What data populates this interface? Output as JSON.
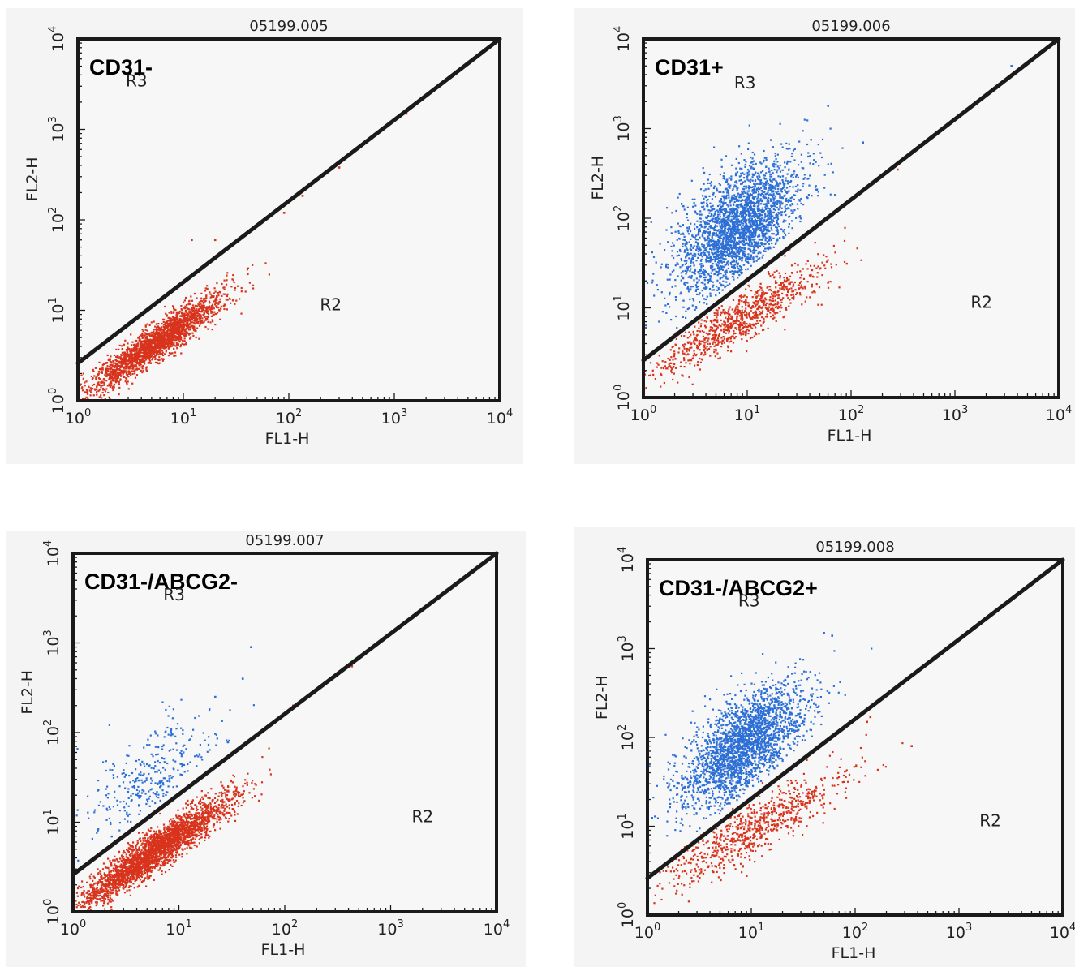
{
  "figure": {
    "background": "#f4f4f4",
    "red_hex": "#d8331c",
    "blue_hex": "#2c6fd6"
  },
  "chart_data": [
    {
      "type": "scatter",
      "sample_id": "05199.005",
      "title": "CD31-",
      "xlabel": "FL1-H",
      "ylabel": "FL2-H",
      "x_scale": "log",
      "y_scale": "log",
      "xlim": [
        1,
        10000
      ],
      "ylim": [
        1,
        10000
      ],
      "x_ticks": [
        {
          "base": "10",
          "exp": "0"
        },
        {
          "base": "10",
          "exp": "1"
        },
        {
          "base": "10",
          "exp": "2"
        },
        {
          "base": "10",
          "exp": "3"
        },
        {
          "base": "10",
          "exp": "4"
        }
      ],
      "y_ticks": [
        {
          "base": "10",
          "exp": "0"
        },
        {
          "base": "10",
          "exp": "1"
        },
        {
          "base": "10",
          "exp": "2"
        },
        {
          "base": "10",
          "exp": "3"
        },
        {
          "base": "10",
          "exp": "4"
        }
      ],
      "gate_line": {
        "x": [
          1,
          10000
        ],
        "y": [
          2.6,
          10000
        ]
      },
      "regions": [
        {
          "label": "R3",
          "x": 3.6,
          "y": 3000
        },
        {
          "label": "R2",
          "x": 250,
          "y": 10
        }
      ],
      "series": [
        {
          "color": "#d8331c",
          "count": 2200,
          "x_log_mean": 0.75,
          "y_log_mean": 0.65,
          "x_log_sd": 0.32,
          "y_log_sd": 0.27,
          "correlation": 0.93,
          "outliers": [
            [
              12,
              60
            ],
            [
              20,
              60
            ],
            [
              300,
              380
            ],
            [
              1300,
              1500
            ],
            [
              135,
              185
            ],
            [
              90,
              120
            ]
          ]
        }
      ]
    },
    {
      "type": "scatter",
      "sample_id": "05199.006",
      "title": "CD31+",
      "xlabel": "FL1-H",
      "ylabel": "FL2-H",
      "x_scale": "log",
      "y_scale": "log",
      "xlim": [
        1,
        10000
      ],
      "ylim": [
        1,
        10000
      ],
      "x_ticks": [
        {
          "base": "10",
          "exp": "0"
        },
        {
          "base": "10",
          "exp": "1"
        },
        {
          "base": "10",
          "exp": "2"
        },
        {
          "base": "10",
          "exp": "3"
        },
        {
          "base": "10",
          "exp": "4"
        }
      ],
      "y_ticks": [
        {
          "base": "10",
          "exp": "0"
        },
        {
          "base": "10",
          "exp": "1"
        },
        {
          "base": "10",
          "exp": "2"
        },
        {
          "base": "10",
          "exp": "3"
        },
        {
          "base": "10",
          "exp": "4"
        }
      ],
      "gate_line": {
        "x": [
          1,
          10000
        ],
        "y": [
          2.6,
          10000
        ]
      },
      "regions": [
        {
          "label": "R3",
          "x": 9.5,
          "y": 2800
        },
        {
          "label": "R2",
          "x": 1800,
          "y": 10
        }
      ],
      "series": [
        {
          "color": "#2c6fd6",
          "count": 2600,
          "x_log_mean": 0.92,
          "y_log_mean": 1.9,
          "x_log_sd": 0.3,
          "y_log_sd": 0.37,
          "correlation": 0.55,
          "outliers": [
            [
              60,
              1800
            ],
            [
              3500,
              5000
            ],
            [
              130,
              700
            ]
          ]
        },
        {
          "color": "#d8331c",
          "count": 900,
          "x_log_mean": 0.95,
          "y_log_mean": 0.9,
          "x_log_sd": 0.42,
          "y_log_sd": 0.32,
          "correlation": 0.9,
          "outliers": [
            [
              280,
              350
            ]
          ]
        }
      ]
    },
    {
      "type": "scatter",
      "sample_id": "05199.007",
      "title": "CD31-/ABCG2-",
      "xlabel": "FL1-H",
      "ylabel": "FL2-H",
      "x_scale": "log",
      "y_scale": "log",
      "xlim": [
        1,
        10000
      ],
      "ylim": [
        1,
        10000
      ],
      "x_ticks": [
        {
          "base": "10",
          "exp": "0"
        },
        {
          "base": "10",
          "exp": "1"
        },
        {
          "base": "10",
          "exp": "2"
        },
        {
          "base": "10",
          "exp": "3"
        },
        {
          "base": "10",
          "exp": "4"
        }
      ],
      "y_ticks": [
        {
          "base": "10",
          "exp": "0"
        },
        {
          "base": "10",
          "exp": "1"
        },
        {
          "base": "10",
          "exp": "2"
        },
        {
          "base": "10",
          "exp": "3"
        },
        {
          "base": "10",
          "exp": "4"
        }
      ],
      "gate_line": {
        "x": [
          1,
          10000
        ],
        "y": [
          2.6,
          10000
        ]
      },
      "regions": [
        {
          "label": "R3",
          "x": 9,
          "y": 3000
        },
        {
          "label": "R2",
          "x": 2000,
          "y": 10
        }
      ],
      "series": [
        {
          "color": "#d8331c",
          "count": 2700,
          "x_log_mean": 0.78,
          "y_log_mean": 0.68,
          "x_log_sd": 0.35,
          "y_log_sd": 0.3,
          "correlation": 0.93,
          "outliers": [
            [
              200,
              300
            ],
            [
              430,
              550
            ],
            [
              120,
              200
            ]
          ]
        },
        {
          "color": "#2c6fd6",
          "count": 320,
          "x_log_mean": 0.8,
          "y_log_mean": 1.5,
          "x_log_sd": 0.33,
          "y_log_sd": 0.33,
          "correlation": 0.5,
          "outliers": [
            [
              48,
              900
            ],
            [
              40,
              400
            ],
            [
              22,
              250
            ]
          ]
        }
      ]
    },
    {
      "type": "scatter",
      "sample_id": "05199.008",
      "title": "CD31-/ABCG2+",
      "xlabel": "FL1-H",
      "ylabel": "FL2-H",
      "x_scale": "log",
      "y_scale": "log",
      "xlim": [
        1,
        10000
      ],
      "ylim": [
        1,
        10000
      ],
      "x_ticks": [
        {
          "base": "10",
          "exp": "0"
        },
        {
          "base": "10",
          "exp": "1"
        },
        {
          "base": "10",
          "exp": "2"
        },
        {
          "base": "10",
          "exp": "3"
        },
        {
          "base": "10",
          "exp": "4"
        }
      ],
      "y_ticks": [
        {
          "base": "10",
          "exp": "0"
        },
        {
          "base": "10",
          "exp": "1"
        },
        {
          "base": "10",
          "exp": "2"
        },
        {
          "base": "10",
          "exp": "3"
        },
        {
          "base": "10",
          "exp": "4"
        }
      ],
      "gate_line": {
        "x": [
          1,
          10000
        ],
        "y": [
          2.6,
          10000
        ]
      },
      "regions": [
        {
          "label": "R3",
          "x": 9.5,
          "y": 3000
        },
        {
          "label": "R2",
          "x": 2000,
          "y": 10
        }
      ],
      "series": [
        {
          "color": "#2c6fd6",
          "count": 2400,
          "x_log_mean": 0.92,
          "y_log_mean": 1.9,
          "x_log_sd": 0.3,
          "y_log_sd": 0.34,
          "correlation": 0.6,
          "outliers": [
            [
              60,
              1400
            ],
            [
              50,
              1500
            ]
          ]
        },
        {
          "color": "#d8331c",
          "count": 750,
          "x_log_mean": 1.0,
          "y_log_mean": 0.95,
          "x_log_sd": 0.45,
          "y_log_sd": 0.33,
          "correlation": 0.88,
          "outliers": [
            [
              140,
              170
            ],
            [
              130,
              150
            ],
            [
              350,
              80
            ]
          ]
        }
      ]
    }
  ]
}
